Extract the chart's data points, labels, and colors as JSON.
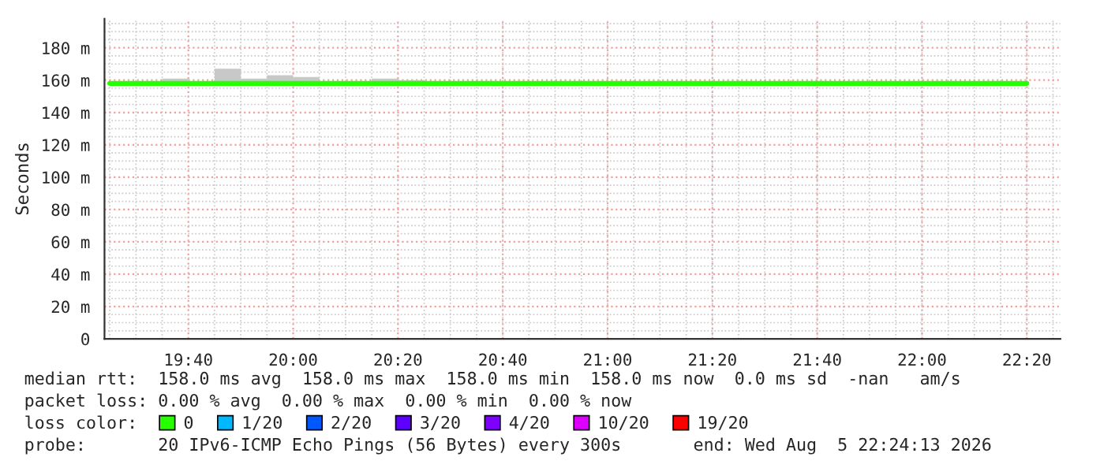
{
  "chart_data": {
    "type": "step",
    "ylabel": "Seconds",
    "legend_title": "loss color:",
    "xlim": [
      19.4,
      22.44
    ],
    "ylim": [
      0,
      198
    ],
    "xticks": [
      {
        "value": 19.6667,
        "label": "19:40"
      },
      {
        "value": 20,
        "label": "20:00"
      },
      {
        "value": 20.3333,
        "label": "20:20"
      },
      {
        "value": 20.6667,
        "label": "20:40"
      },
      {
        "value": 21,
        "label": "21:00"
      },
      {
        "value": 21.3333,
        "label": "21:20"
      },
      {
        "value": 21.6667,
        "label": "21:40"
      },
      {
        "value": 22,
        "label": "22:00"
      },
      {
        "value": 22.3333,
        "label": "22:20"
      }
    ],
    "yticks": [
      0,
      {
        "value": 20,
        "label": "20 m"
      },
      {
        "value": 40,
        "label": "40 m"
      },
      {
        "value": 60,
        "label": "60 m"
      },
      {
        "value": 80,
        "label": "80 m"
      },
      {
        "value": 100,
        "label": "100 m"
      },
      {
        "value": 120,
        "label": "120 m"
      },
      {
        "value": 140,
        "label": "140 m"
      },
      {
        "value": 160,
        "label": "160 m"
      },
      {
        "value": 180,
        "label": "180 m"
      }
    ],
    "grid": true,
    "legend": "bottom",
    "series": [
      {
        "name": "0",
        "color": "#26ff00",
        "x": [
          19.4167,
          19.5,
          19.5833,
          19.6667,
          19.75,
          19.8333,
          19.9167,
          20,
          20.0833,
          20.1667,
          20.25,
          20.3333,
          20.4167,
          20.5,
          20.5833,
          20.6667,
          20.75,
          20.8333,
          20.9167,
          21,
          21.0833,
          21.1667,
          21.25,
          21.3333,
          21.4167,
          21.5,
          21.5833,
          21.6667,
          21.75,
          21.8333,
          21.9167,
          22,
          22.0833,
          22.1667,
          22.25,
          22.3333
        ],
        "values": [
          158,
          158,
          158,
          158,
          158,
          158,
          158,
          158,
          158,
          158,
          158,
          158,
          158,
          158,
          158,
          158,
          158,
          158,
          158,
          158,
          158,
          158,
          158,
          158,
          158,
          158,
          158,
          158,
          158,
          158,
          158,
          158,
          158,
          158,
          158,
          158
        ],
        "lower": [
          158,
          158,
          158,
          158,
          158,
          158,
          158,
          158,
          158,
          158,
          158,
          158,
          158,
          158,
          158,
          158,
          158,
          158,
          158,
          158,
          158,
          158,
          158,
          158,
          158,
          158,
          158,
          158,
          158,
          158,
          158,
          158,
          158,
          158,
          158,
          158
        ],
        "upper": [
          158,
          158,
          161,
          158,
          167,
          161,
          163,
          162,
          158,
          158,
          161,
          160,
          158,
          158,
          158,
          158,
          158,
          158,
          158,
          159,
          158,
          158,
          158,
          158,
          158,
          158,
          158,
          158,
          158,
          158,
          158,
          158,
          158,
          158,
          158,
          158
        ]
      },
      {
        "name": "1/20",
        "color": "#00b8ff"
      },
      {
        "name": "2/20",
        "color": "#0059ff"
      },
      {
        "name": "3/20",
        "color": "#5e00ff"
      },
      {
        "name": "4/20",
        "color": "#7e00ff"
      },
      {
        "name": "10/20",
        "color": "#dd00ff"
      },
      {
        "name": "19/20",
        "color": "#ff0000"
      }
    ],
    "annotations": [
      "median rtt:  158.0 ms avg  158.0 ms max  158.0 ms min  158.0 ms now  0.0 ms sd  -nan   am/s",
      "packet loss: 0.00 % avg  0.00 % max  0.00 % min  0.00 % now",
      "probe:       20 IPv6-ICMP Echo Pings (56 Bytes) every 300s       end: Wed Aug  5 22:24:13 2026"
    ]
  }
}
